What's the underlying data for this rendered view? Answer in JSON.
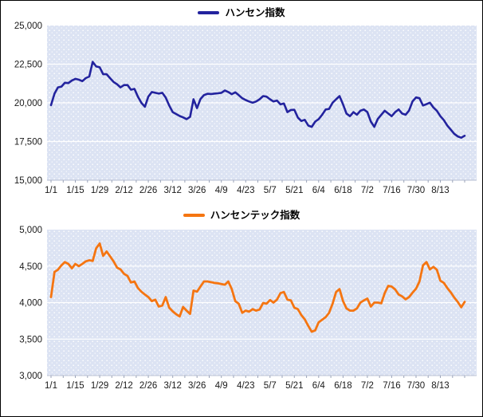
{
  "style": {
    "page_background": "#ffffff",
    "border_color": "#000000",
    "plot_bg": "#dce3f3",
    "plot_dot": "#ffffff",
    "grid_color": "#ffffff",
    "axis_color": "#b6bdd0",
    "tick_color": "#9aa3b8",
    "label_color": "#1a1a1a"
  },
  "chart_data": [
    {
      "type": "line",
      "legend": "ハンセン指数",
      "line_color": "#23239E",
      "ylim": [
        15000,
        25000
      ],
      "y_tick_values": [
        25000,
        22500,
        20000,
        17500,
        15000
      ],
      "y_tick_labels": [
        "25,000",
        "22,500",
        "20,000",
        "17,500",
        "15,000"
      ],
      "x_tick_labels": [
        "1/1",
        "1/15",
        "1/29",
        "2/12",
        "2/26",
        "3/12",
        "3/26",
        "4/9",
        "4/23",
        "5/7",
        "5/21",
        "6/4",
        "6/18",
        "7/2",
        "7/16",
        "7/30",
        "8/13"
      ],
      "x_tick_interval_days": 14,
      "minor_tick_interval_days": 7,
      "x_start_day": 0,
      "x_step_days": 2,
      "values": [
        19850,
        20600,
        21000,
        21050,
        21300,
        21280,
        21450,
        21550,
        21500,
        21400,
        21600,
        21700,
        22650,
        22350,
        22300,
        21850,
        21850,
        21600,
        21350,
        21200,
        21000,
        21150,
        21150,
        20850,
        20900,
        20400,
        20000,
        19750,
        20400,
        20700,
        20650,
        20600,
        20650,
        20340,
        19830,
        19400,
        19280,
        19150,
        19060,
        18950,
        19100,
        20230,
        19660,
        20250,
        20500,
        20590,
        20570,
        20600,
        20620,
        20650,
        20800,
        20700,
        20560,
        20680,
        20500,
        20300,
        20180,
        20090,
        20010,
        20090,
        20230,
        20440,
        20400,
        20230,
        20090,
        20150,
        19900,
        19960,
        19400,
        19540,
        19550,
        19050,
        18830,
        18900,
        18530,
        18450,
        18790,
        18950,
        19230,
        19570,
        19610,
        20010,
        20230,
        20440,
        19900,
        19310,
        19140,
        19400,
        19230,
        19490,
        19570,
        19400,
        18790,
        18450,
        18960,
        19230,
        19490,
        19310,
        19140,
        19400,
        19570,
        19310,
        19230,
        19500,
        20100,
        20350,
        20300,
        19830,
        19920,
        20010,
        19700,
        19490,
        19140,
        18880,
        18530,
        18270,
        18000,
        17830,
        17750,
        17870
      ]
    },
    {
      "type": "line",
      "legend": "ハンセンテック指数",
      "line_color": "#F57511",
      "ylim": [
        3000,
        5000
      ],
      "y_tick_values": [
        5000,
        4500,
        4000,
        3500,
        3000
      ],
      "y_tick_labels": [
        "5,000",
        "4,500",
        "4,000",
        "3,500",
        "3,000"
      ],
      "x_tick_labels": [
        "1/1",
        "1/15",
        "1/29",
        "2/12",
        "2/26",
        "3/12",
        "3/26",
        "4/9",
        "4/23",
        "5/7",
        "5/21",
        "6/4",
        "6/18",
        "7/2",
        "7/16",
        "7/30",
        "8/13"
      ],
      "x_tick_interval_days": 14,
      "minor_tick_interval_days": 7,
      "x_start_day": 0,
      "x_step_days": 2,
      "values": [
        4075,
        4420,
        4450,
        4510,
        4555,
        4530,
        4470,
        4530,
        4500,
        4530,
        4565,
        4580,
        4570,
        4745,
        4810,
        4640,
        4700,
        4635,
        4565,
        4480,
        4455,
        4395,
        4365,
        4275,
        4290,
        4200,
        4150,
        4110,
        4075,
        4020,
        4040,
        3945,
        3960,
        4075,
        3930,
        3880,
        3840,
        3810,
        3940,
        3890,
        3845,
        4165,
        4150,
        4220,
        4290,
        4290,
        4280,
        4270,
        4265,
        4255,
        4245,
        4290,
        4185,
        4020,
        3985,
        3860,
        3890,
        3875,
        3910,
        3890,
        3905,
        3995,
        3985,
        4035,
        4000,
        4040,
        4130,
        4145,
        4040,
        4030,
        3930,
        3910,
        3830,
        3770,
        3680,
        3600,
        3620,
        3730,
        3765,
        3800,
        3860,
        3985,
        4145,
        4185,
        4020,
        3920,
        3890,
        3890,
        3920,
        4000,
        4030,
        4055,
        3945,
        4000,
        4000,
        3990,
        4130,
        4230,
        4220,
        4180,
        4110,
        4085,
        4045,
        4075,
        4135,
        4190,
        4290,
        4510,
        4555,
        4455,
        4490,
        4450,
        4300,
        4270,
        4200,
        4140,
        4070,
        4010,
        3935,
        4010
      ]
    }
  ]
}
